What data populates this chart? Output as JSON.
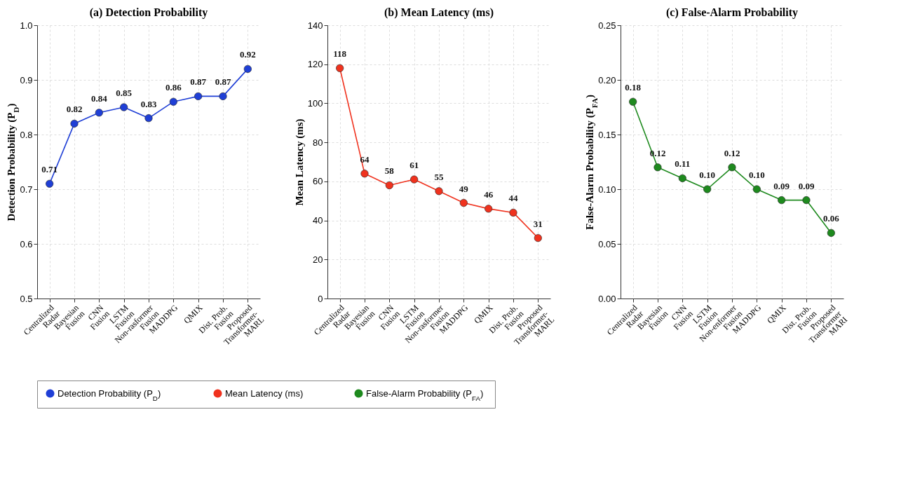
{
  "chart_data": [
    {
      "type": "line",
      "title": "(a) Detection Probability",
      "ylabel": "Detection Probability (P$_{D}$)",
      "categories": [
        "Centralized\nRadar",
        "Bayesian\nFusion",
        "CNN\nFusion",
        "LSTM\nFusion",
        "Non-rasformer\nFusion",
        "MADDPG",
        "QMIX",
        "Dist. Prob.\nFusion",
        "Proposed\nTransformer-\nMARL"
      ],
      "series": [
        {
          "name": "Detection Probability (P$_{D}$)",
          "color": "#1f3fd6",
          "values": [
            0.71,
            0.82,
            0.84,
            0.85,
            0.83,
            0.86,
            0.87,
            0.87,
            0.92
          ],
          "value_labels": [
            "0.71",
            "0.82",
            "0.84",
            "0.85",
            "0.83",
            "0.86",
            "0.87",
            "0.87",
            "0.92"
          ]
        }
      ],
      "ylim": [
        0.5,
        1.0
      ],
      "yticks": [
        0.5,
        0.6,
        0.7,
        0.8,
        0.9,
        {
          "value": 1.0,
          "label": "1.0"
        }
      ],
      "grid": true,
      "marker": "circle",
      "line_style": "solid",
      "legend": "bottom"
    },
    {
      "type": "line",
      "title": "(b) Mean Latency (ms)",
      "ylabel": "Mean Latency (ms)",
      "categories": [
        "Centralized\nRadar",
        "Bayesian\nFusion",
        "CNN\nFusion",
        "LSTM\nFusion",
        "Non-rasformer\nFusion",
        "MADDPG",
        "QMIX",
        "Dist. Prob.\nFusion",
        "Proposed\nTransformer-\nMARL"
      ],
      "series": [
        {
          "name": "Mean Latency (ms)",
          "color": "#f0321e",
          "values": [
            118,
            64,
            58,
            61,
            55,
            49,
            46,
            44,
            31
          ],
          "value_labels": [
            "118",
            "64",
            "58",
            "61",
            "55",
            "49",
            "46",
            "44",
            "31"
          ]
        }
      ],
      "ylim": [
        0,
        140
      ],
      "yticks": [
        0,
        20,
        40,
        60,
        80,
        100,
        120,
        140
      ],
      "grid": true,
      "marker": "circle",
      "line_style": "solid",
      "legend": "bottom"
    },
    {
      "type": "line",
      "title": "(c) False-Alarm Probability",
      "ylabel": "False-Alarm Probability (P$_{FA}$)",
      "categories": [
        "Centralized\nRadar",
        "Bayesian\nFusion",
        "CNN\nFusion",
        "LSTM\nFusion",
        "Non-enformer\nFusion",
        "MADDPG",
        "QMIX",
        "Dist. Prob.\nFusion",
        "Proposed\nTransformer\nMARI"
      ],
      "series": [
        {
          "name": "False-Alarm Probability (P$_{FA}$)",
          "color": "#1e8a1e",
          "values": [
            0.18,
            0.12,
            0.11,
            0.1,
            0.12,
            0.1,
            0.09,
            0.09,
            0.06
          ],
          "value_labels": [
            "0.18",
            "0.12",
            "0.11",
            "0.10",
            "0.12",
            "0.10",
            "0.09",
            "0.09",
            "0.06"
          ]
        }
      ],
      "ylim": [
        0,
        0.25
      ],
      "yticks": [
        {
          "value": 0,
          "label": "0.00"
        },
        0.05,
        {
          "value": 0.1,
          "label": "0.10"
        },
        0.15,
        {
          "value": 0.2,
          "label": "0.20"
        },
        0.25
      ],
      "grid": true,
      "marker": "circle",
      "line_style": "solid",
      "legend": "bottom"
    }
  ]
}
